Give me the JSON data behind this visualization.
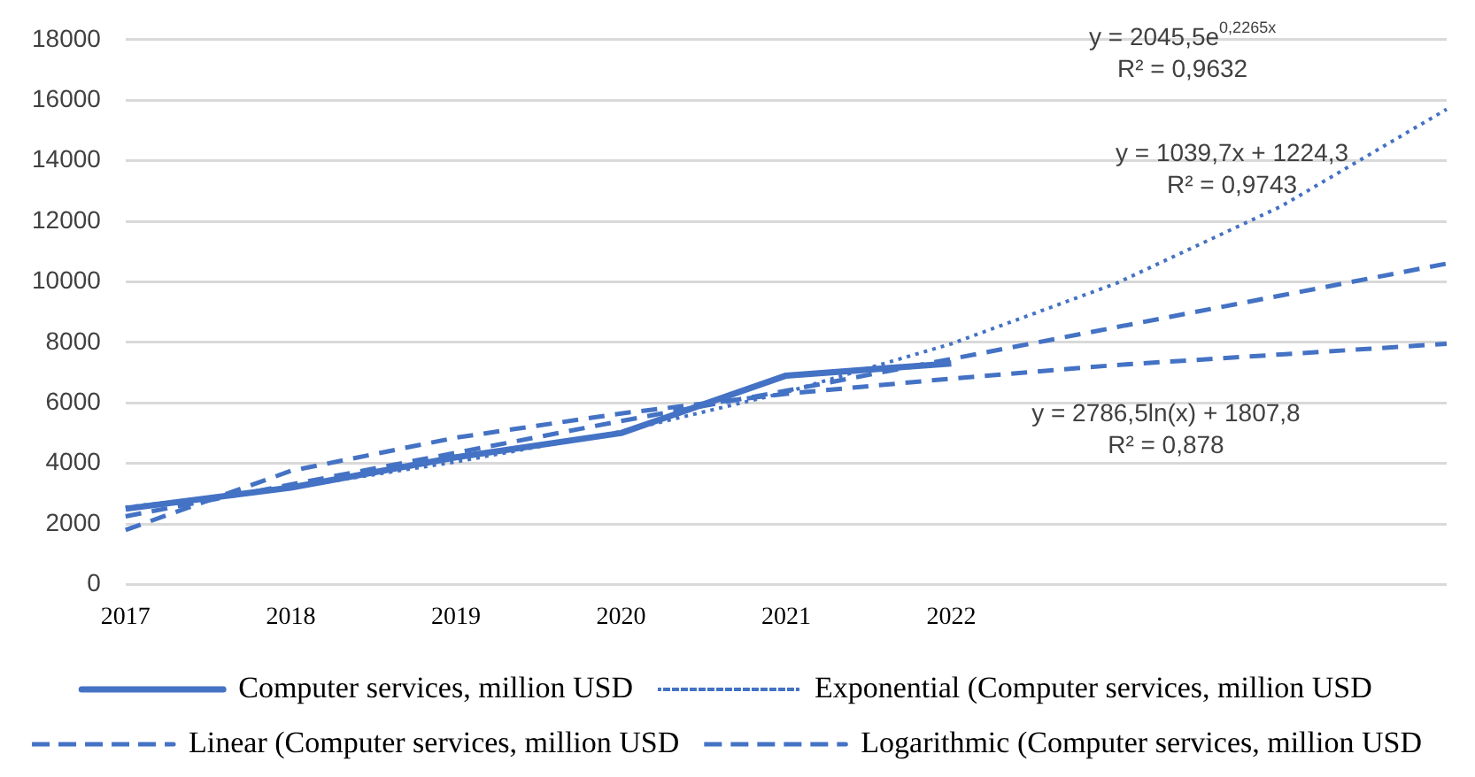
{
  "chart_data": {
    "type": "line",
    "categories": [
      "2017",
      "2018",
      "2019",
      "2020",
      "2021",
      "2022",
      null,
      null,
      null
    ],
    "series": [
      {
        "name": "Computer services, million USD",
        "color": "#4472c4",
        "line_style": "solid",
        "values": [
          2500,
          3200,
          4200,
          5000,
          6900,
          7300,
          null,
          null,
          null
        ]
      },
      {
        "name": "Exponential (Computer services, million USD",
        "color": "#4472c4",
        "line_style": "dotted",
        "values": [
          2550,
          3200,
          4050,
          5050,
          6350,
          7950,
          9950,
          12500,
          15700
        ]
      },
      {
        "name": "Linear (Computer services, million USD",
        "color": "#4472c4",
        "line_style": "dashed",
        "values": [
          2250,
          3300,
          4350,
          5400,
          6400,
          7450,
          8500,
          9550,
          10600
        ]
      },
      {
        "name": "Logarithmic (Computer services, million USD",
        "color": "#4472c4",
        "line_style": "dashed",
        "values": [
          1800,
          3750,
          4850,
          5650,
          6300,
          6800,
          7250,
          7600,
          7950
        ]
      }
    ],
    "ylim": [
      0,
      18000
    ],
    "yticks": [
      0,
      2000,
      4000,
      6000,
      8000,
      10000,
      12000,
      14000,
      16000,
      18000
    ],
    "grid": "y",
    "legend": "bottom",
    "marker": "none",
    "annotations": [
      "y = 2045,5e$^{0,2265x}$\nR² = 0,9632",
      "y = 1039,7x + 1224,3\nR² = 0,9743",
      "y = 2786,5ln(x) + 1807,8\nR² = 0,878"
    ]
  }
}
